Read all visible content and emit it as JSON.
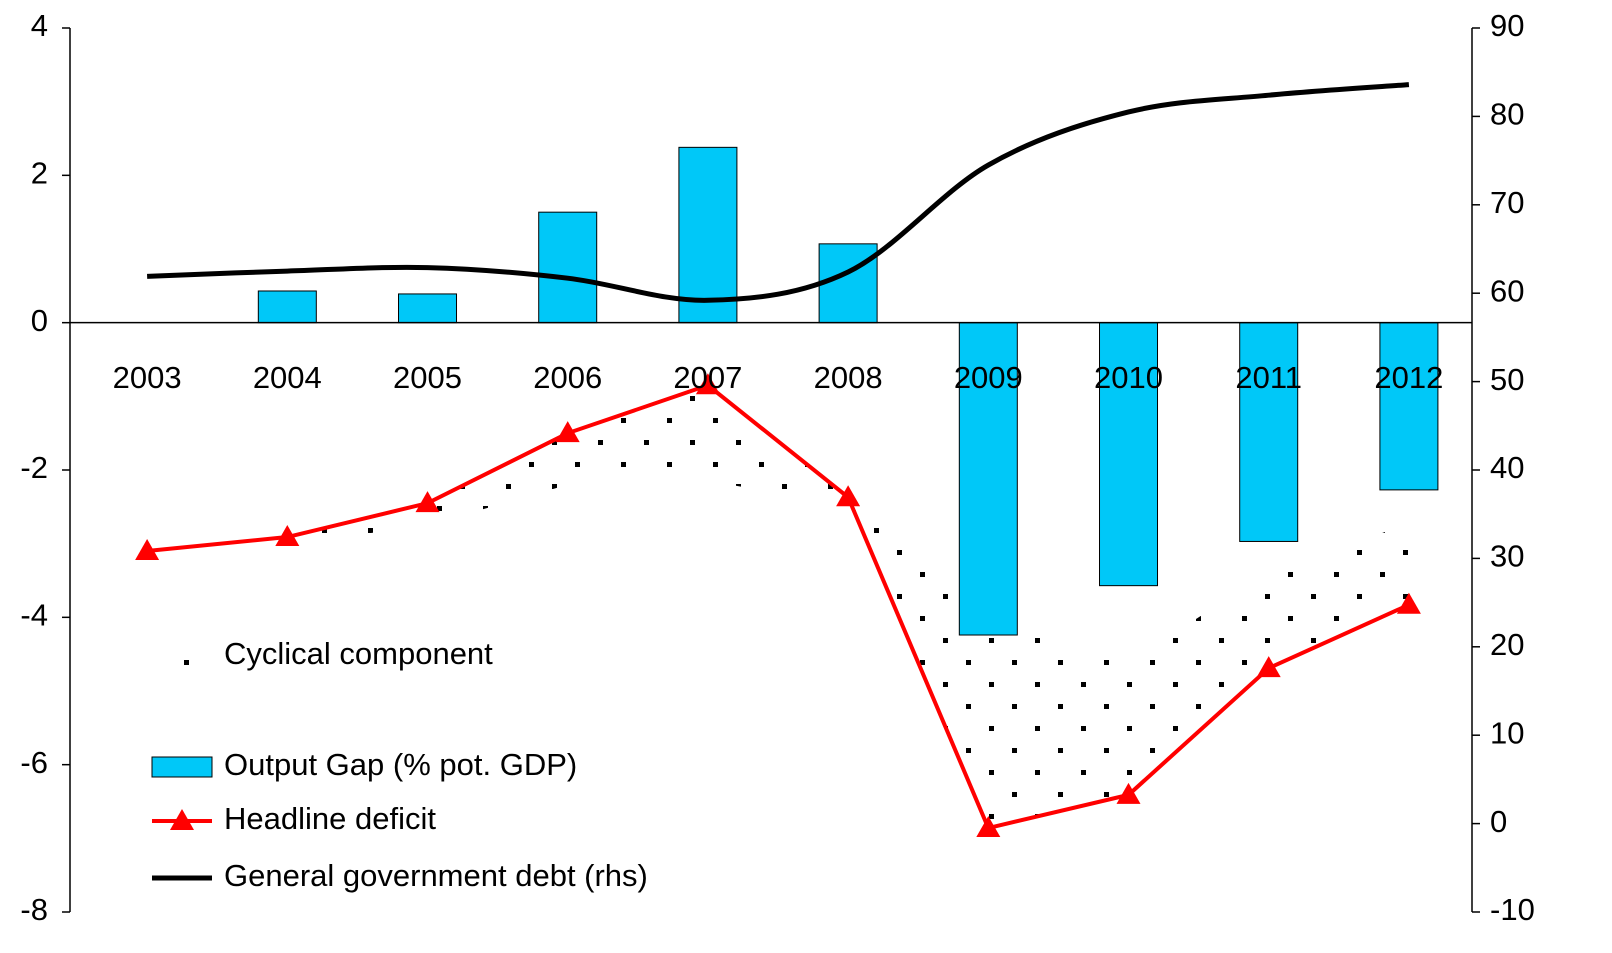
{
  "chart_data": {
    "type": "bar-line",
    "categories": [
      "2003",
      "2004",
      "2005",
      "2006",
      "2007",
      "2008",
      "2009",
      "2010",
      "2011",
      "2012"
    ],
    "series": [
      {
        "name": "Cyclical component",
        "type": "area",
        "color": "#000000",
        "values": [
          -0.05,
          0.1,
          0.3,
          0.7,
          1.3,
          0.1,
          -2.96,
          -1.8,
          -1.3,
          -1.1
        ]
      },
      {
        "name": "Output Gap (% pot. GDP)",
        "type": "bar",
        "color": "#00c8f8",
        "values": [
          0,
          0.43,
          0.39,
          1.5,
          2.38,
          1.07,
          -4.24,
          -3.57,
          -2.97,
          -2.27
        ]
      },
      {
        "name": "Headline deficit",
        "type": "line",
        "color": "#ff0000",
        "values": [
          -3.1,
          -2.91,
          -2.45,
          -1.5,
          -0.85,
          -2.37,
          -6.86,
          -6.41,
          -4.69,
          -3.83
        ]
      },
      {
        "name": "General government debt (rhs)",
        "type": "line",
        "axis": "y2",
        "color": "#000000",
        "values": [
          61.9,
          62.5,
          62.9,
          61.7,
          59.2,
          62.4,
          74.5,
          80.5,
          82.4,
          83.6
        ]
      }
    ],
    "ylim": [
      -8,
      4
    ],
    "yticks": [
      -8,
      -6,
      -4,
      -2,
      0,
      2,
      4
    ],
    "y2lim": [
      -10,
      90
    ],
    "y2ticks": [
      -10,
      0,
      10,
      20,
      30,
      40,
      50,
      60,
      70,
      80,
      90
    ]
  }
}
